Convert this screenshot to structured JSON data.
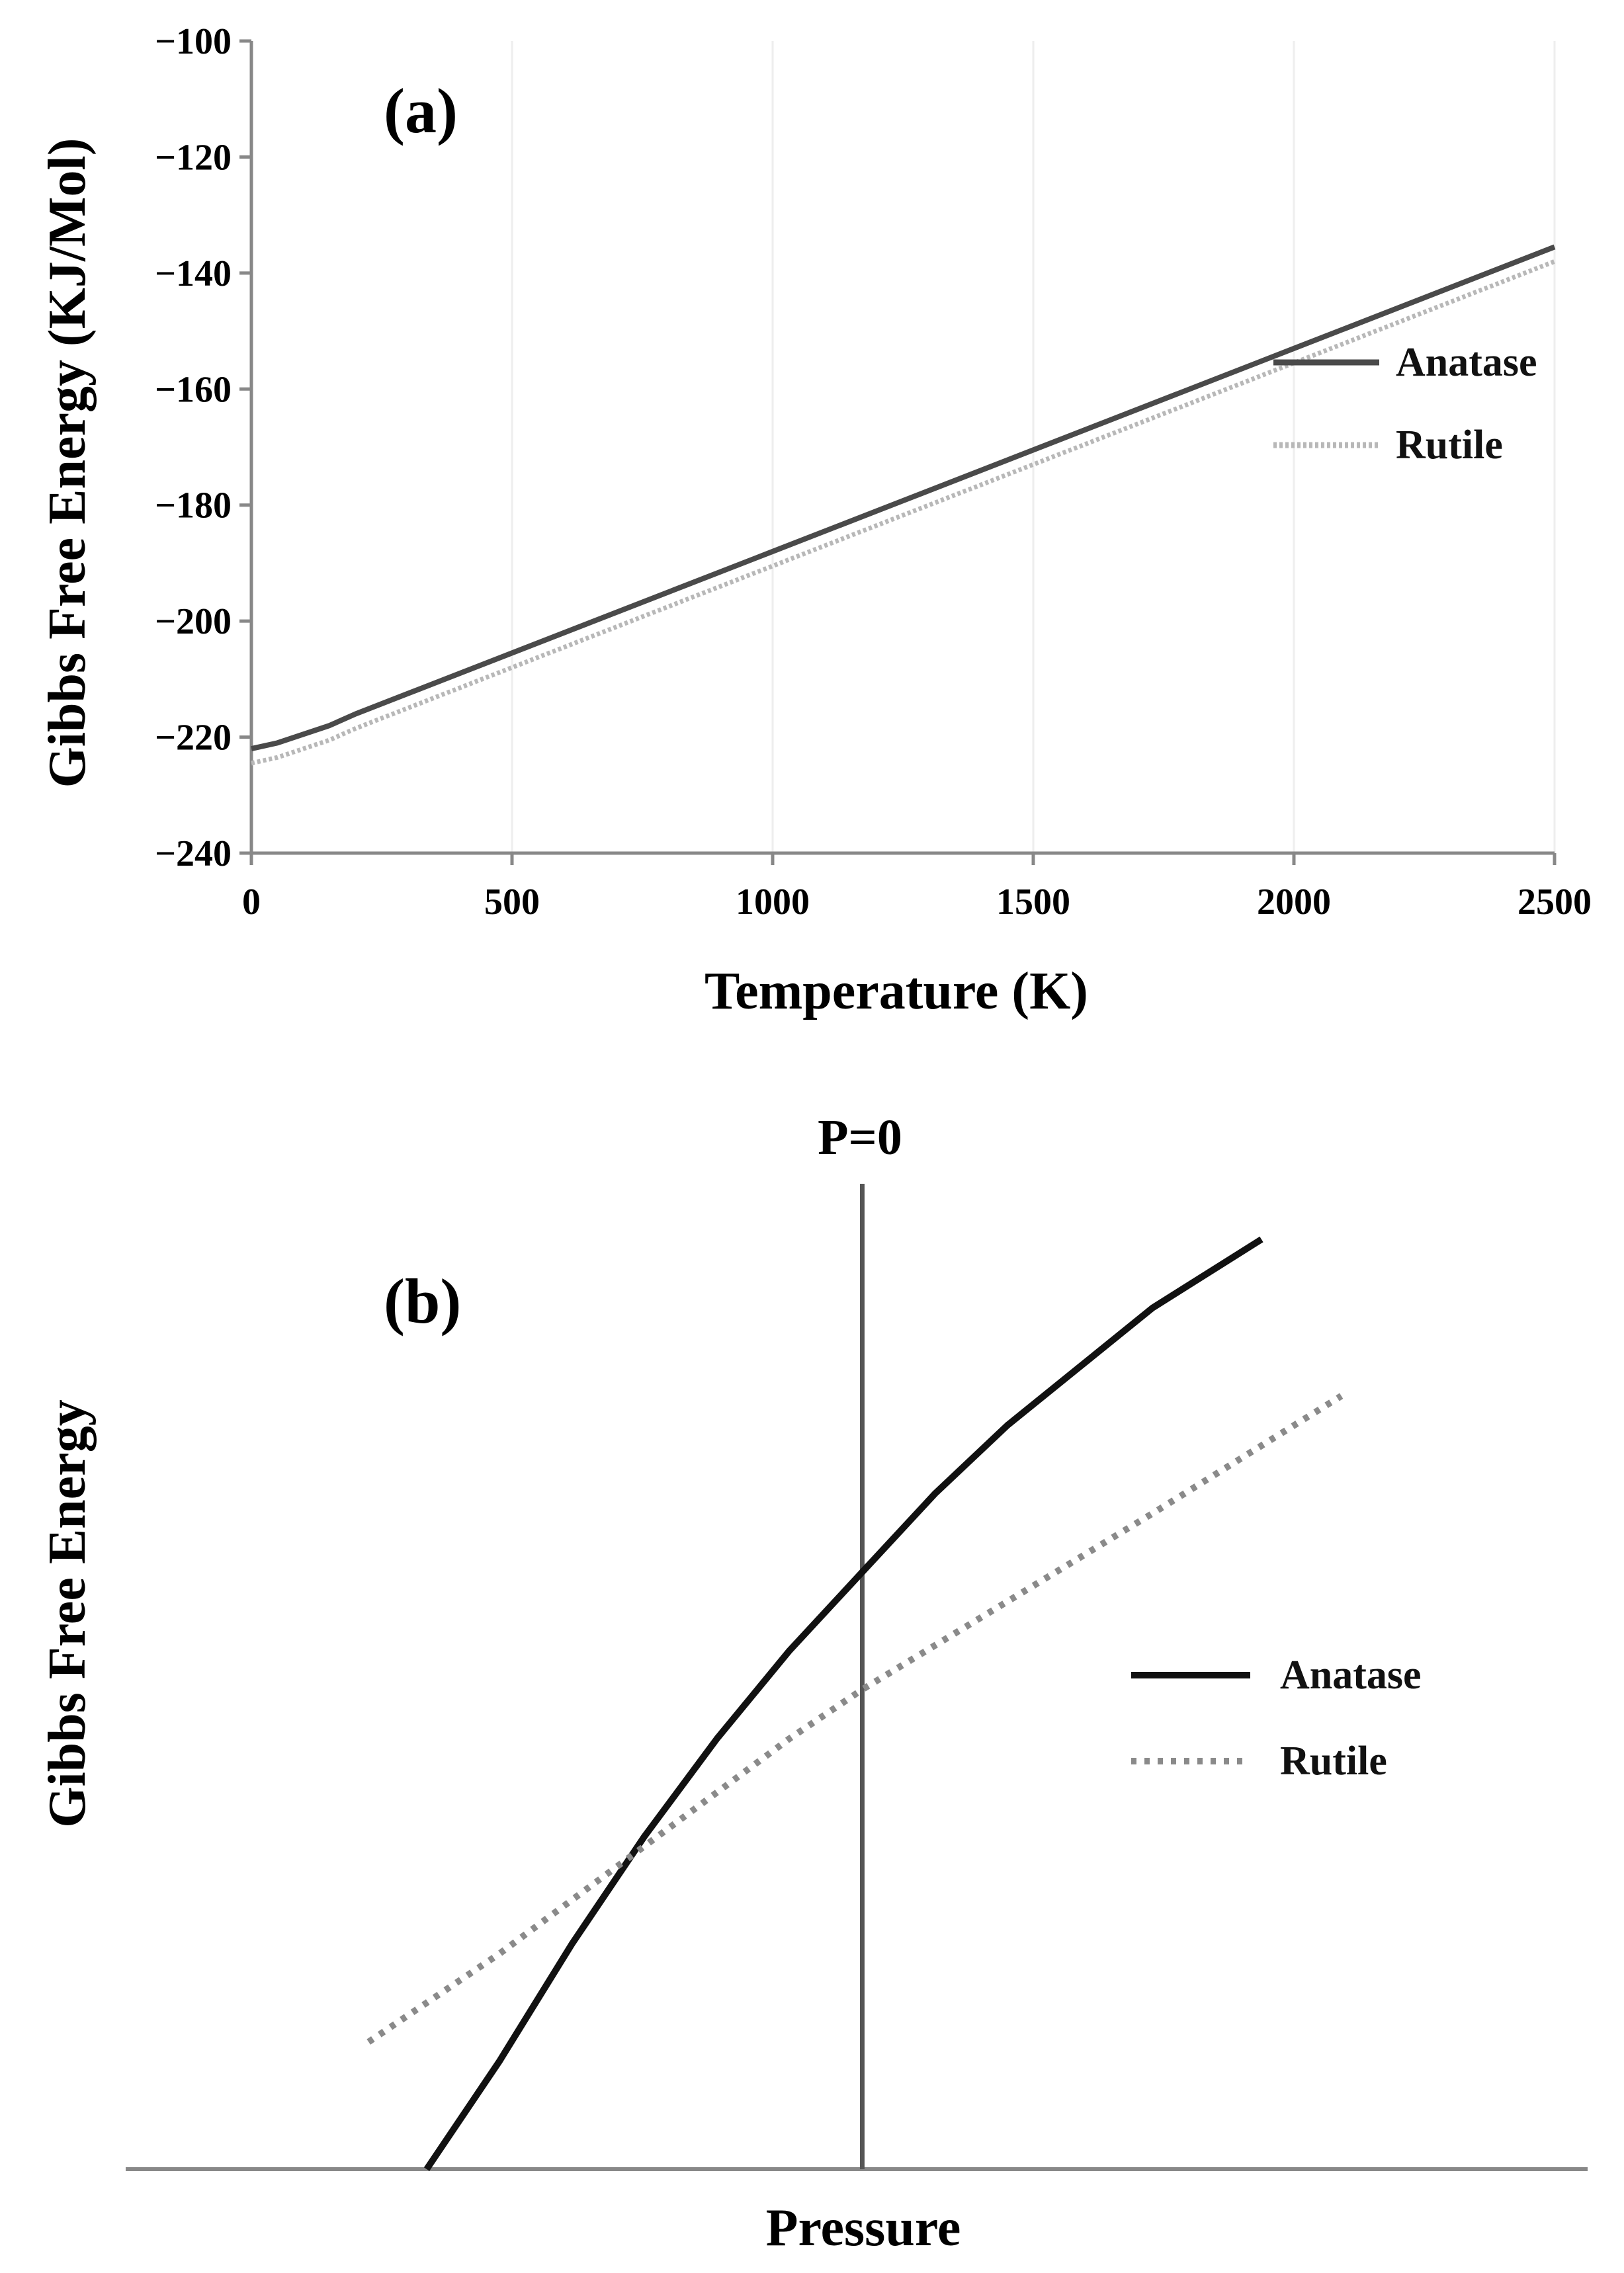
{
  "colors": {
    "anatase": "#4a4a4a",
    "rutile": "#b8b8b8",
    "anatase_b": "#111111",
    "rutile_b": "#8a8a8a",
    "axis": "#888888",
    "grid": "#eeeeee"
  },
  "chart_data": [
    {
      "type": "line",
      "panel_label": "(a)",
      "xlabel": "Temperature (K)",
      "ylabel": "Gibbs Free Energy (KJ/Mol)",
      "xlim": [
        0,
        2500
      ],
      "ylim": [
        -240,
        -100
      ],
      "xticks": [
        0,
        500,
        1000,
        1500,
        2000,
        2500
      ],
      "yticks": [
        -240,
        -220,
        -200,
        -180,
        -160,
        -140,
        -120,
        -100
      ],
      "xtick_labels": [
        "0",
        "500",
        "1000",
        "1500",
        "2000",
        "2500"
      ],
      "ytick_labels": [
        "−240",
        "−220",
        "−200",
        "−180",
        "−160",
        "−140",
        "−120",
        "−100"
      ],
      "legend_position": "right",
      "series": [
        {
          "name": "Anatase",
          "style": "solid",
          "x": [
            0,
            50,
            100,
            150,
            200,
            300,
            500,
            1000,
            1500,
            2000,
            2500
          ],
          "y": [
            -222,
            -221,
            -219.5,
            -218,
            -216,
            -212.5,
            -205.5,
            -188,
            -170.5,
            -153,
            -135.5
          ]
        },
        {
          "name": "Rutile",
          "style": "dotted",
          "x": [
            0,
            50,
            100,
            150,
            200,
            300,
            500,
            1000,
            1500,
            2000,
            2500
          ],
          "y": [
            -224.5,
            -223.5,
            -222,
            -220.5,
            -218.5,
            -215,
            -208,
            -190.5,
            -173,
            -155.5,
            -138
          ]
        }
      ]
    },
    {
      "type": "line",
      "panel_label": "(b)",
      "xlabel": "Pressure",
      "ylabel": "Gibbs Free Energy",
      "vertical_line_label": "P=0",
      "legend_position": "right",
      "xlim": [
        -1,
        1
      ],
      "ylim": [
        0,
        1
      ],
      "vertical_line_x": 0,
      "series": [
        {
          "name": "Anatase",
          "style": "solid",
          "x": [
            -0.6,
            -0.5,
            -0.4,
            -0.3,
            -0.2,
            -0.1,
            0.0,
            0.1,
            0.2,
            0.3,
            0.4,
            0.55
          ],
          "y": [
            0.0,
            0.11,
            0.23,
            0.34,
            0.44,
            0.53,
            0.61,
            0.69,
            0.76,
            0.82,
            0.88,
            0.95
          ]
        },
        {
          "name": "Rutile",
          "style": "dotted",
          "x": [
            -0.68,
            -0.5,
            -0.3,
            -0.1,
            0.0,
            0.2,
            0.4,
            0.66
          ],
          "y": [
            0.13,
            0.22,
            0.33,
            0.44,
            0.49,
            0.58,
            0.67,
            0.79
          ]
        }
      ]
    }
  ]
}
